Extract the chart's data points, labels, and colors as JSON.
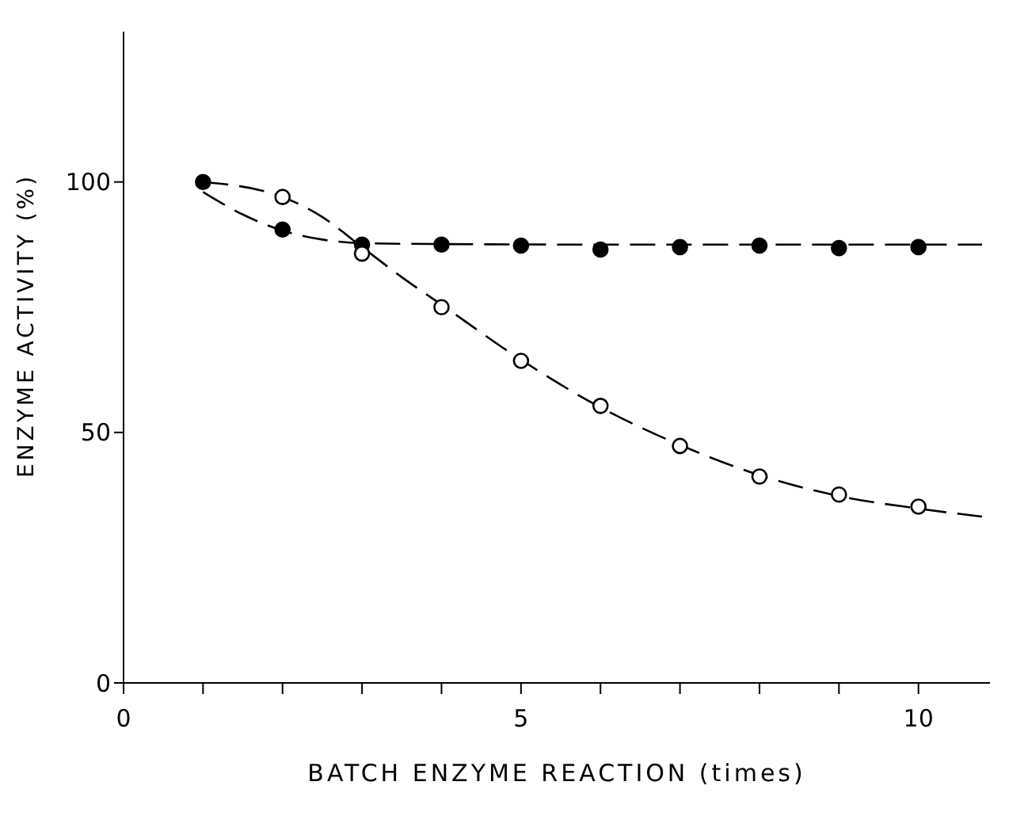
{
  "chart_data": {
    "type": "scatter",
    "xlabel": "BATCH   ENZYME   REACTION   (times)",
    "ylabel": "ENZYME  ACTIVITY (%)",
    "xlim": [
      0,
      10.9
    ],
    "ylim": [
      0,
      130
    ],
    "xticks": [
      0,
      {
        "value": 1,
        "label": null
      },
      {
        "value": 2,
        "label": null
      },
      {
        "value": 3,
        "label": null
      },
      {
        "value": 4,
        "label": null
      },
      5,
      {
        "value": 6,
        "label": null
      },
      {
        "value": 7,
        "label": null
      },
      {
        "value": 8,
        "label": null
      },
      {
        "value": 9,
        "label": null
      },
      10
    ],
    "yticks": [
      0,
      50,
      100
    ],
    "grid": false,
    "marker": "circle",
    "series": [
      {
        "color": "#000000",
        "x": [
          1,
          2,
          3,
          4,
          5,
          6,
          7,
          8,
          9,
          10
        ],
        "values": [
          100,
          90.5,
          87.5,
          87.5,
          87.3,
          86.5,
          87,
          87.3,
          86.8,
          87
        ]
      },
      {
        "color": "#ffffff",
        "x": [
          2,
          3,
          4,
          5,
          6,
          7,
          8,
          9,
          10
        ],
        "values": [
          97,
          85.7,
          75,
          64.3,
          55.3,
          47.3,
          41.2,
          37.6,
          35.2
        ]
      },
      {
        "type": "line",
        "color": "#000000",
        "line_style": "dashed",
        "marker": "none",
        "x": [
          1,
          1.5,
          2,
          2.5,
          3,
          4,
          6,
          8,
          10,
          10.8
        ],
        "values": [
          98,
          93.5,
          90.3,
          88.5,
          87.8,
          87.6,
          87.5,
          87.5,
          87.5,
          87.5
        ]
      },
      {
        "type": "line",
        "color": "#000000",
        "line_style": "dashed",
        "marker": "none",
        "x": [
          1,
          2,
          2.5,
          3,
          3.5,
          4,
          5,
          6,
          7,
          8,
          9,
          10,
          10.8
        ],
        "values": [
          100,
          97,
          93,
          87,
          81,
          75.5,
          64.5,
          55,
          47.5,
          41.5,
          37.3,
          34.8,
          33.2
        ]
      }
    ]
  }
}
